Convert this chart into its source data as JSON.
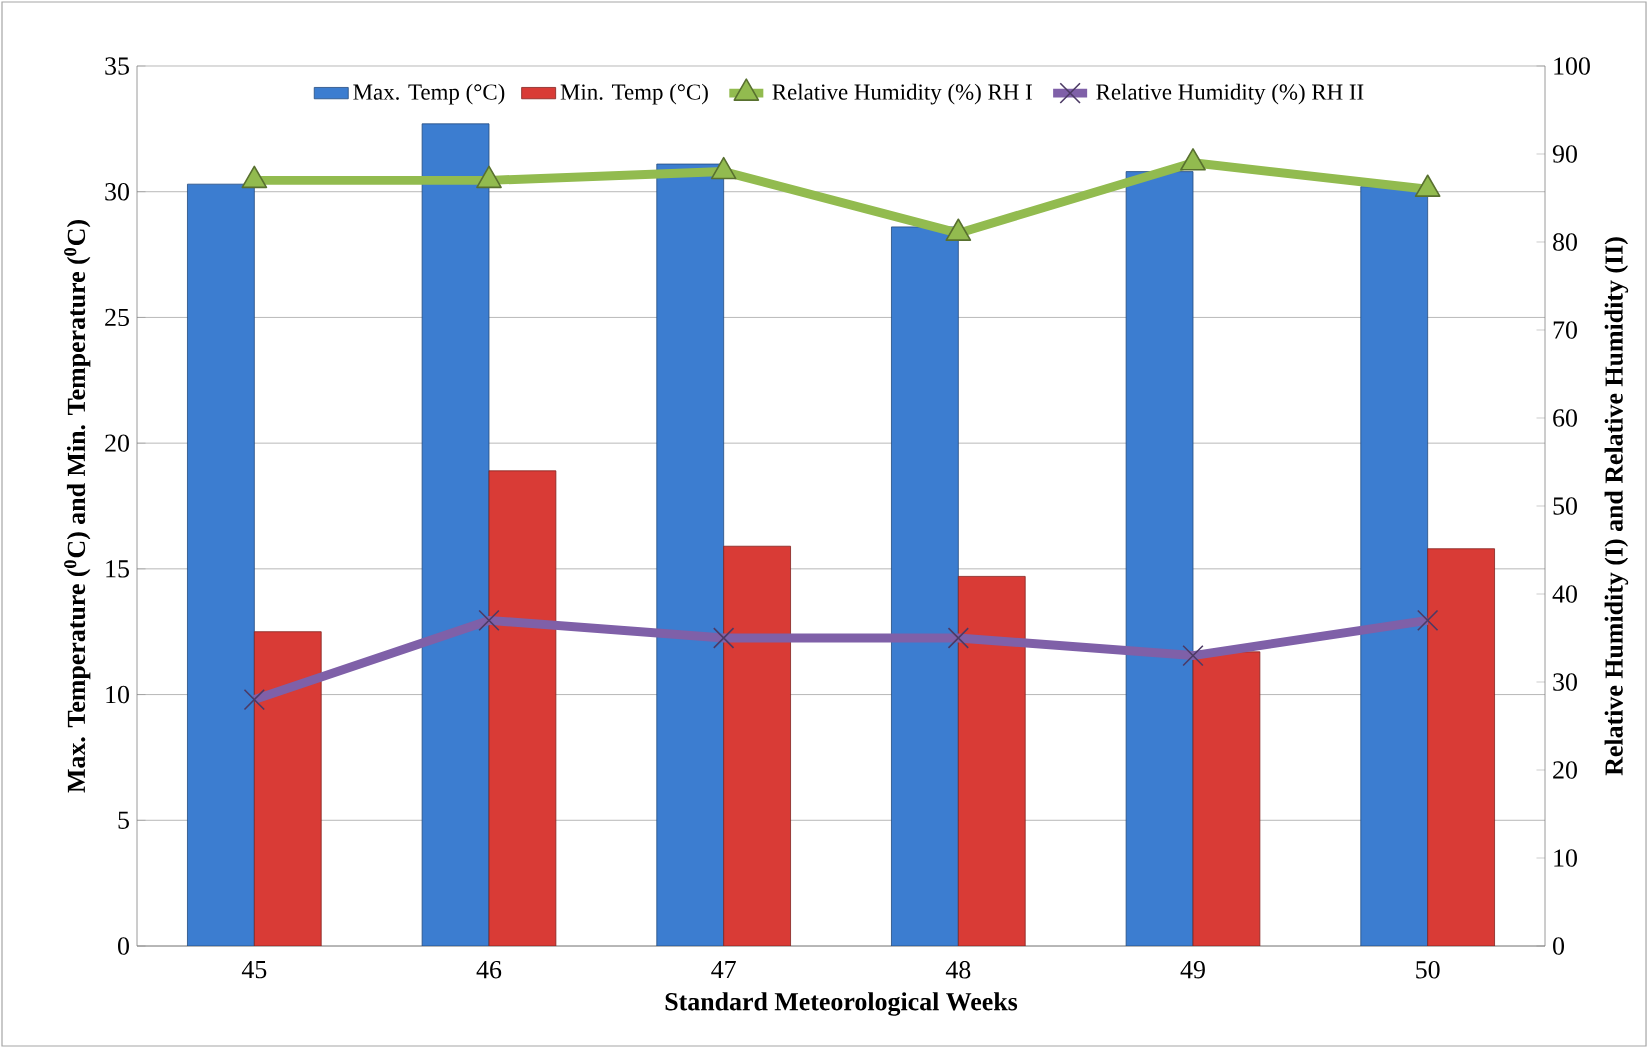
{
  "chart_data": {
    "type": "bar",
    "xlabel": "Standard Meteorological Weeks",
    "ylabel": "Max. Temperature ($^{0}$C) and Min. Temperature ($^{0}$C)",
    "y2label": "Relative Humidity (I) and Relative Humidity (II)",
    "categories": [
      "45",
      "46",
      "47",
      "48",
      "49",
      "50"
    ],
    "series": [
      {
        "name": "Max. Temp (°C)",
        "color": "#3c7dd0",
        "values": [
          30.3,
          32.7,
          31.1,
          28.6,
          30.8,
          30.2
        ]
      },
      {
        "name": "Min. Temp (°C)",
        "color": "#d93b36",
        "values": [
          12.5,
          18.9,
          15.9,
          14.7,
          11.7,
          15.8
        ]
      },
      {
        "name": "Relative Humidity (%) RH I",
        "type": "line",
        "axis": "y2",
        "marker": "triangle",
        "color": "#92bb4f",
        "values": [
          87,
          87,
          88,
          81,
          89,
          86
        ]
      },
      {
        "name": "Relative Humidity (%) RH II",
        "type": "line",
        "axis": "y2",
        "marker": "cross",
        "color": "#7f60a8",
        "values": [
          28,
          37,
          35,
          35,
          33,
          37
        ]
      }
    ],
    "ylim": [
      0,
      35
    ],
    "yticks": [
      0,
      5,
      10,
      15,
      20,
      25,
      30,
      35
    ],
    "y2lim": [
      0,
      100
    ],
    "y2ticks": [
      0,
      10,
      20,
      30,
      40,
      50,
      60,
      70,
      80,
      90,
      100
    ],
    "grid": "y",
    "legend": "top"
  }
}
